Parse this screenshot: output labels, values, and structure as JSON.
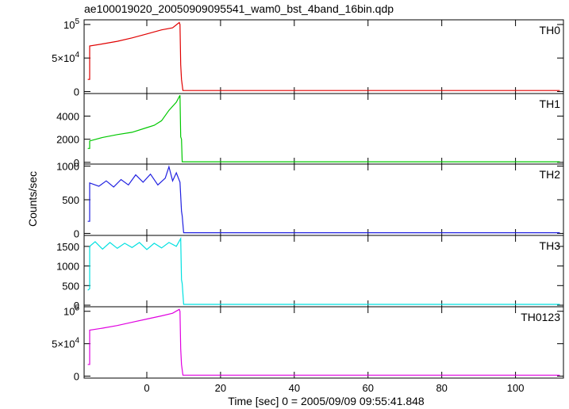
{
  "title": "ae100019020_20050909095541_wam0_bst_4band_16bin.qdp",
  "chart_data": {
    "type": "line",
    "title": "ae100019020_20050909095541_wam0_bst_4band_16bin.qdp",
    "xlabel": "Time [sec] 0 = 2005/09/09 09:55:41.848",
    "ylabel": "Counts/sec",
    "xlim": [
      -17,
      113
    ],
    "x_ticks": [
      0,
      20,
      40,
      60,
      80,
      100
    ],
    "x_tick_labels": [
      "0",
      "20",
      "40",
      "60",
      "80",
      "100"
    ],
    "grid": false,
    "panels": [
      {
        "name": "TH0",
        "color": "#e00000",
        "ylim": [
          -3000,
          107000
        ],
        "y_ticks": [
          0,
          50000,
          100000
        ],
        "y_tick_labels": [
          {
            "base": "0",
            "sup": ""
          },
          {
            "base": "5×10",
            "sup": "4"
          },
          {
            "base": "10",
            "sup": "5"
          }
        ],
        "points": [
          [
            -16,
            18000
          ],
          [
            -15.5,
            18000
          ],
          [
            -15.5,
            68000
          ],
          [
            -12,
            71000
          ],
          [
            -8,
            75000
          ],
          [
            -4,
            80000
          ],
          [
            0,
            86000
          ],
          [
            4,
            92000
          ],
          [
            7,
            95000
          ],
          [
            8.8,
            103000
          ],
          [
            9,
            100000
          ],
          [
            9.2,
            40000
          ],
          [
            9.4,
            18000
          ],
          [
            9.8,
            1500
          ],
          [
            112,
            1500
          ]
        ]
      },
      {
        "name": "TH1",
        "color": "#00c800",
        "ylim": [
          -150,
          5950
        ],
        "y_ticks": [
          0,
          2000,
          4000
        ],
        "y_tick_labels": [
          {
            "base": "0",
            "sup": ""
          },
          {
            "base": "2000",
            "sup": ""
          },
          {
            "base": "4000",
            "sup": ""
          }
        ],
        "points": [
          [
            -16,
            1200
          ],
          [
            -15.5,
            1200
          ],
          [
            -15.5,
            1850
          ],
          [
            -12,
            2150
          ],
          [
            -8,
            2400
          ],
          [
            -4,
            2600
          ],
          [
            0,
            3000
          ],
          [
            2,
            3200
          ],
          [
            4,
            3600
          ],
          [
            6,
            4500
          ],
          [
            8,
            5200
          ],
          [
            9,
            5800
          ],
          [
            9.2,
            2200
          ],
          [
            9.4,
            2000
          ],
          [
            9.6,
            50
          ],
          [
            112,
            50
          ]
        ]
      },
      {
        "name": "TH2",
        "color": "#2020e0",
        "ylim": [
          -30,
          1030
        ],
        "y_ticks": [
          0,
          500,
          1000
        ],
        "y_tick_labels": [
          {
            "base": "0",
            "sup": ""
          },
          {
            "base": "500",
            "sup": ""
          },
          {
            "base": "1000",
            "sup": ""
          }
        ],
        "points": [
          [
            -16,
            180
          ],
          [
            -15.5,
            180
          ],
          [
            -15.5,
            750
          ],
          [
            -13,
            700
          ],
          [
            -11,
            780
          ],
          [
            -9,
            690
          ],
          [
            -7,
            800
          ],
          [
            -5,
            720
          ],
          [
            -3,
            870
          ],
          [
            -1,
            760
          ],
          [
            1,
            880
          ],
          [
            3,
            720
          ],
          [
            5,
            820
          ],
          [
            6,
            990
          ],
          [
            7,
            780
          ],
          [
            8,
            900
          ],
          [
            9,
            760
          ],
          [
            9.4,
            330
          ],
          [
            9.6,
            260
          ],
          [
            10,
            10
          ],
          [
            112,
            10
          ]
        ]
      },
      {
        "name": "TH3",
        "color": "#00e0e0",
        "ylim": [
          -40,
          1780
        ],
        "y_ticks": [
          0,
          500,
          1000,
          1500
        ],
        "y_tick_labels": [
          {
            "base": "0",
            "sup": ""
          },
          {
            "base": "500",
            "sup": ""
          },
          {
            "base": "1000",
            "sup": ""
          },
          {
            "base": "1500",
            "sup": ""
          }
        ],
        "points": [
          [
            -16,
            380
          ],
          [
            -15.5,
            420
          ],
          [
            -15.5,
            1500
          ],
          [
            -14,
            1620
          ],
          [
            -12,
            1430
          ],
          [
            -10,
            1600
          ],
          [
            -8,
            1450
          ],
          [
            -6,
            1580
          ],
          [
            -4,
            1470
          ],
          [
            -2,
            1600
          ],
          [
            0,
            1420
          ],
          [
            2,
            1580
          ],
          [
            4,
            1460
          ],
          [
            6,
            1600
          ],
          [
            8,
            1500
          ],
          [
            9.2,
            1700
          ],
          [
            9.4,
            650
          ],
          [
            9.6,
            550
          ],
          [
            10,
            20
          ],
          [
            112,
            20
          ]
        ]
      },
      {
        "name": "TH0123",
        "color": "#e000e0",
        "ylim": [
          -3000,
          107000
        ],
        "y_ticks": [
          0,
          50000,
          100000
        ],
        "y_tick_labels": [
          {
            "base": "0",
            "sup": ""
          },
          {
            "base": "5×10",
            "sup": "4"
          },
          {
            "base": "10",
            "sup": "5"
          }
        ],
        "points": [
          [
            -16,
            18000
          ],
          [
            -15.5,
            18000
          ],
          [
            -15.5,
            71000
          ],
          [
            -12,
            74000
          ],
          [
            -8,
            78000
          ],
          [
            -4,
            83000
          ],
          [
            0,
            88000
          ],
          [
            4,
            93000
          ],
          [
            7,
            97000
          ],
          [
            8.8,
            103000
          ],
          [
            9,
            100000
          ],
          [
            9.2,
            42000
          ],
          [
            9.4,
            18000
          ],
          [
            9.8,
            1500
          ],
          [
            112,
            1500
          ]
        ]
      }
    ]
  }
}
